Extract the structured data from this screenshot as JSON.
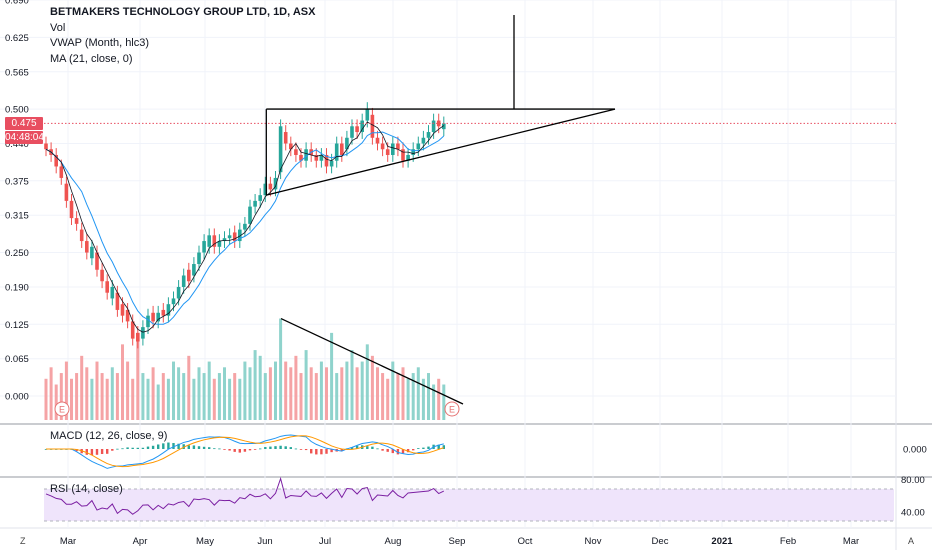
{
  "legend": {
    "title": "BETMAKERS TECHNOLOGY GROUP LTD, 1D, ASX",
    "vol": "Vol",
    "vwap": "VWAP (Month, hlc3)",
    "ma": "MA (21, close, 0)"
  },
  "price_axis_ticks": [
    "0.690",
    "0.625",
    "0.565",
    "0.500",
    "0.440",
    "0.375",
    "0.315",
    "0.250",
    "0.190",
    "0.125",
    "0.065",
    "0.000"
  ],
  "price_badge": {
    "value": "0.475",
    "countdown": "04:48:04",
    "color": "#e84e60"
  },
  "macd": {
    "label": "MACD (12, 26, close, 9)",
    "tick": "0.000"
  },
  "rsi": {
    "label": "RSI (14, close)",
    "ticks": [
      "80.00",
      "40.00"
    ]
  },
  "corner_left": "Z",
  "corner_right": "A",
  "earnings_marker": "E",
  "colors": {
    "up": "#26a69a",
    "down": "#ef5350",
    "vol_up": "#8fd3cc",
    "vol_down": "#f5a3a5",
    "vwap": "#2196f3",
    "ma": "#131722",
    "rsi_line": "#7b1fa2",
    "rsi_band": "#efe4fb",
    "last_price_line": "#e84e60"
  },
  "chart_data": {
    "type": "candlestick",
    "x_axis_labels": [
      "Mar",
      "Apr",
      "May",
      "Jun",
      "Jul",
      "Aug",
      "Sep",
      "Oct",
      "Nov",
      "Dec",
      "2021",
      "Feb",
      "Mar"
    ],
    "y_ticks": [
      0.69,
      0.625,
      0.565,
      0.5,
      0.44,
      0.375,
      0.315,
      0.25,
      0.19,
      0.125,
      0.065,
      0.0
    ],
    "last_price": 0.475,
    "close": [
      0.43,
      0.42,
      0.4,
      0.38,
      0.34,
      0.31,
      0.3,
      0.27,
      0.25,
      0.26,
      0.22,
      0.2,
      0.18,
      0.19,
      0.15,
      0.14,
      0.13,
      0.1,
      0.095,
      0.12,
      0.14,
      0.13,
      0.145,
      0.14,
      0.16,
      0.17,
      0.19,
      0.21,
      0.2,
      0.23,
      0.25,
      0.27,
      0.28,
      0.26,
      0.27,
      0.275,
      0.28,
      0.27,
      0.29,
      0.3,
      0.33,
      0.34,
      0.35,
      0.37,
      0.36,
      0.38,
      0.47,
      0.44,
      0.43,
      0.42,
      0.41,
      0.43,
      0.42,
      0.41,
      0.42,
      0.4,
      0.41,
      0.44,
      0.42,
      0.45,
      0.47,
      0.46,
      0.48,
      0.5,
      0.45,
      0.44,
      0.43,
      0.42,
      0.44,
      0.43,
      0.41,
      0.42,
      0.43,
      0.44,
      0.45,
      0.46,
      0.48,
      0.47,
      0.475
    ],
    "open": [
      0.44,
      0.43,
      0.42,
      0.4,
      0.37,
      0.34,
      0.31,
      0.29,
      0.27,
      0.24,
      0.25,
      0.22,
      0.2,
      0.17,
      0.18,
      0.16,
      0.15,
      0.13,
      0.11,
      0.1,
      0.12,
      0.145,
      0.13,
      0.15,
      0.14,
      0.16,
      0.17,
      0.19,
      0.22,
      0.21,
      0.23,
      0.25,
      0.26,
      0.28,
      0.26,
      0.27,
      0.275,
      0.285,
      0.27,
      0.29,
      0.3,
      0.33,
      0.34,
      0.35,
      0.37,
      0.36,
      0.39,
      0.46,
      0.44,
      0.43,
      0.42,
      0.41,
      0.43,
      0.42,
      0.41,
      0.42,
      0.4,
      0.41,
      0.44,
      0.43,
      0.45,
      0.47,
      0.46,
      0.48,
      0.49,
      0.45,
      0.44,
      0.43,
      0.42,
      0.44,
      0.43,
      0.41,
      0.42,
      0.43,
      0.44,
      0.45,
      0.46,
      0.48,
      0.465
    ],
    "volume": [
      0.03,
      0.05,
      0.02,
      0.04,
      0.06,
      0.03,
      0.04,
      0.07,
      0.05,
      0.03,
      0.06,
      0.04,
      0.03,
      0.05,
      0.04,
      0.09,
      0.06,
      0.03,
      0.11,
      0.04,
      0.03,
      0.05,
      0.02,
      0.04,
      0.03,
      0.06,
      0.05,
      0.04,
      0.07,
      0.03,
      0.05,
      0.04,
      0.06,
      0.03,
      0.04,
      0.05,
      0.03,
      0.04,
      0.03,
      0.06,
      0.05,
      0.08,
      0.07,
      0.04,
      0.05,
      0.06,
      0.135,
      0.06,
      0.05,
      0.07,
      0.04,
      0.08,
      0.05,
      0.04,
      0.06,
      0.05,
      0.11,
      0.04,
      0.05,
      0.06,
      0.08,
      0.05,
      0.06,
      0.09,
      0.07,
      0.05,
      0.04,
      0.03,
      0.06,
      0.04,
      0.05,
      0.03,
      0.04,
      0.05,
      0.03,
      0.04,
      0.02,
      0.03,
      0.02
    ],
    "annotations": {
      "ascending_triangle": {
        "resistance": 0.5,
        "support_start": 0.35,
        "apex": 0.5
      },
      "volume_trendline": {
        "start": 0.135,
        "end": 0.0
      }
    }
  }
}
